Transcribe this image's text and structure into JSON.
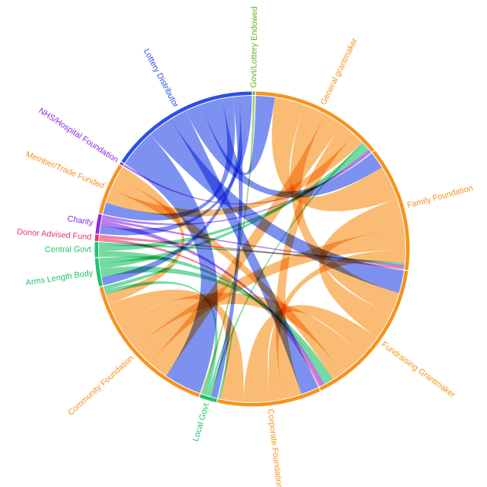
{
  "chart_data": {
    "type": "chord",
    "colors": {
      "grantmaker": "#f7931e",
      "government": "#1ec46b",
      "lottery": "#2d4ee8",
      "charity": "#8a2be2",
      "donor": "#e8336e",
      "endowed": "#6ab023"
    },
    "groups": [
      {
        "id": "govt-lottery",
        "label": "Govt/Lottery Endowed",
        "color": "#6ab023",
        "value": 1
      },
      {
        "id": "general",
        "label": "General grantmaker",
        "color": "#f7931e",
        "value": 62
      },
      {
        "id": "family",
        "label": "Family Foundation",
        "color": "#f7931e",
        "value": 58
      },
      {
        "id": "fundraising",
        "label": "Fundraising Grantmaker",
        "color": "#f7931e",
        "value": 70
      },
      {
        "id": "corporate",
        "label": "Corporate Foundation",
        "color": "#f7931e",
        "value": 48
      },
      {
        "id": "local-govt",
        "label": "Local Govt",
        "color": "#1ec46b",
        "value": 8
      },
      {
        "id": "community",
        "label": "Community Foundation",
        "color": "#f7931e",
        "value": 70
      },
      {
        "id": "arms-length",
        "label": "Arms Length Body",
        "color": "#1ec46b",
        "value": 13
      },
      {
        "id": "central-govt",
        "label": "Central Govt",
        "color": "#1ec46b",
        "value": 7
      },
      {
        "id": "donor-advised",
        "label": "Donor Advised Fund",
        "color": "#e8336e",
        "value": 3
      },
      {
        "id": "charity",
        "label": "Charity",
        "color": "#8a2be2",
        "value": 9
      },
      {
        "id": "member-trade",
        "label": "Member/Trade Funded",
        "color": "#f7931e",
        "value": 24
      },
      {
        "id": "nhs",
        "label": "NHS/Hospital Foundation",
        "color": "#8a2be2",
        "value": 1
      },
      {
        "id": "lottery",
        "label": "Lottery Distributor",
        "color": "#2d4ee8",
        "value": 70
      }
    ],
    "flows": [
      {
        "source": "lottery",
        "target": "community",
        "value": 18
      },
      {
        "source": "lottery",
        "target": "fundraising",
        "value": 12
      },
      {
        "source": "lottery",
        "target": "corporate",
        "value": 8
      },
      {
        "source": "lottery",
        "target": "family",
        "value": 8
      },
      {
        "source": "lottery",
        "target": "general",
        "value": 10
      },
      {
        "source": "lottery",
        "target": "member-trade",
        "value": 5
      },
      {
        "source": "lottery",
        "target": "local-govt",
        "value": 3
      },
      {
        "source": "lottery",
        "target": "arms-length",
        "value": 3
      },
      {
        "source": "lottery",
        "target": "charity",
        "value": 3
      },
      {
        "source": "general",
        "target": "family",
        "value": 16
      },
      {
        "source": "general",
        "target": "fundraising",
        "value": 12
      },
      {
        "source": "general",
        "target": "community",
        "value": 10
      },
      {
        "source": "general",
        "target": "corporate",
        "value": 8
      },
      {
        "source": "general",
        "target": "member-trade",
        "value": 6
      },
      {
        "source": "family",
        "target": "fundraising",
        "value": 14
      },
      {
        "source": "family",
        "target": "community",
        "value": 10
      },
      {
        "source": "family",
        "target": "corporate",
        "value": 6
      },
      {
        "source": "fundraising",
        "target": "corporate",
        "value": 12
      },
      {
        "source": "fundraising",
        "target": "community",
        "value": 14
      },
      {
        "source": "fundraising",
        "target": "member-trade",
        "value": 6
      },
      {
        "source": "corporate",
        "target": "community",
        "value": 10
      },
      {
        "source": "community",
        "target": "member-trade",
        "value": 5
      },
      {
        "source": "local-govt",
        "target": "general",
        "value": 1
      },
      {
        "source": "local-govt",
        "target": "corporate",
        "value": 1
      },
      {
        "source": "local-govt",
        "target": "community",
        "value": 2
      },
      {
        "source": "arms-length",
        "target": "fundraising",
        "value": 3
      },
      {
        "source": "arms-length",
        "target": "general",
        "value": 2
      },
      {
        "source": "arms-length",
        "target": "community",
        "value": 2
      },
      {
        "source": "central-govt",
        "target": "fundraising",
        "value": 2
      },
      {
        "source": "central-govt",
        "target": "general",
        "value": 2
      },
      {
        "source": "central-govt",
        "target": "family",
        "value": 1
      },
      {
        "source": "charity",
        "target": "fundraising",
        "value": 2
      },
      {
        "source": "charity",
        "target": "family",
        "value": 1
      },
      {
        "source": "charity",
        "target": "general",
        "value": 1
      },
      {
        "source": "donor-advised",
        "target": "fundraising",
        "value": 1
      },
      {
        "source": "donor-advised",
        "target": "family",
        "value": 1
      },
      {
        "source": "govt-lottery",
        "target": "local-govt",
        "value": 1
      },
      {
        "source": "nhs",
        "target": "general",
        "value": 1
      }
    ]
  }
}
